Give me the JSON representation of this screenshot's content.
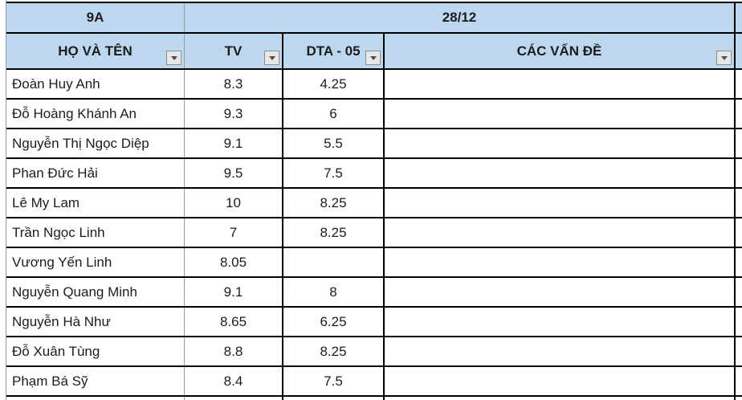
{
  "sheet": {
    "title_row": {
      "class_label": "9A",
      "date_label": "28/12"
    },
    "header": {
      "name": "HỌ VÀ TÊN",
      "tv": "TV",
      "dta": "DTA - 05",
      "issues": "CÁC VẤN ĐỀ"
    },
    "rows": [
      {
        "name": "Đoàn Huy Anh",
        "tv": "8.3",
        "dta": "4.25",
        "issues": ""
      },
      {
        "name": "Đỗ Hoàng Khánh An",
        "tv": "9.3",
        "dta": "6",
        "issues": ""
      },
      {
        "name": "Nguyễn Thị Ngọc Diệp",
        "tv": "9.1",
        "dta": "5.5",
        "issues": ""
      },
      {
        "name": "Phan Đức Hải",
        "tv": "9.5",
        "dta": "7.5",
        "issues": ""
      },
      {
        "name": "Lê My Lam",
        "tv": "10",
        "dta": "8.25",
        "issues": ""
      },
      {
        "name": "Trần Ngọc Linh",
        "tv": "7",
        "dta": "8.25",
        "issues": ""
      },
      {
        "name": "Vương Yến Linh",
        "tv": "8.05",
        "dta": "",
        "issues": ""
      },
      {
        "name": "Nguyễn Quang Minh",
        "tv": "9.1",
        "dta": "8",
        "issues": ""
      },
      {
        "name": "Nguyễn Hà Như",
        "tv": "8.65",
        "dta": "6.25",
        "issues": ""
      },
      {
        "name": "Đỗ Xuân Tùng",
        "tv": "8.8",
        "dta": "8.25",
        "issues": ""
      },
      {
        "name": "Phạm Bá Sỹ",
        "tv": "8.4",
        "dta": "7.5",
        "issues": ""
      }
    ],
    "colors": {
      "header_fill": "#BDD7EE",
      "border_dark": "#000000",
      "gridline_gray": "#9b9b9b"
    }
  }
}
